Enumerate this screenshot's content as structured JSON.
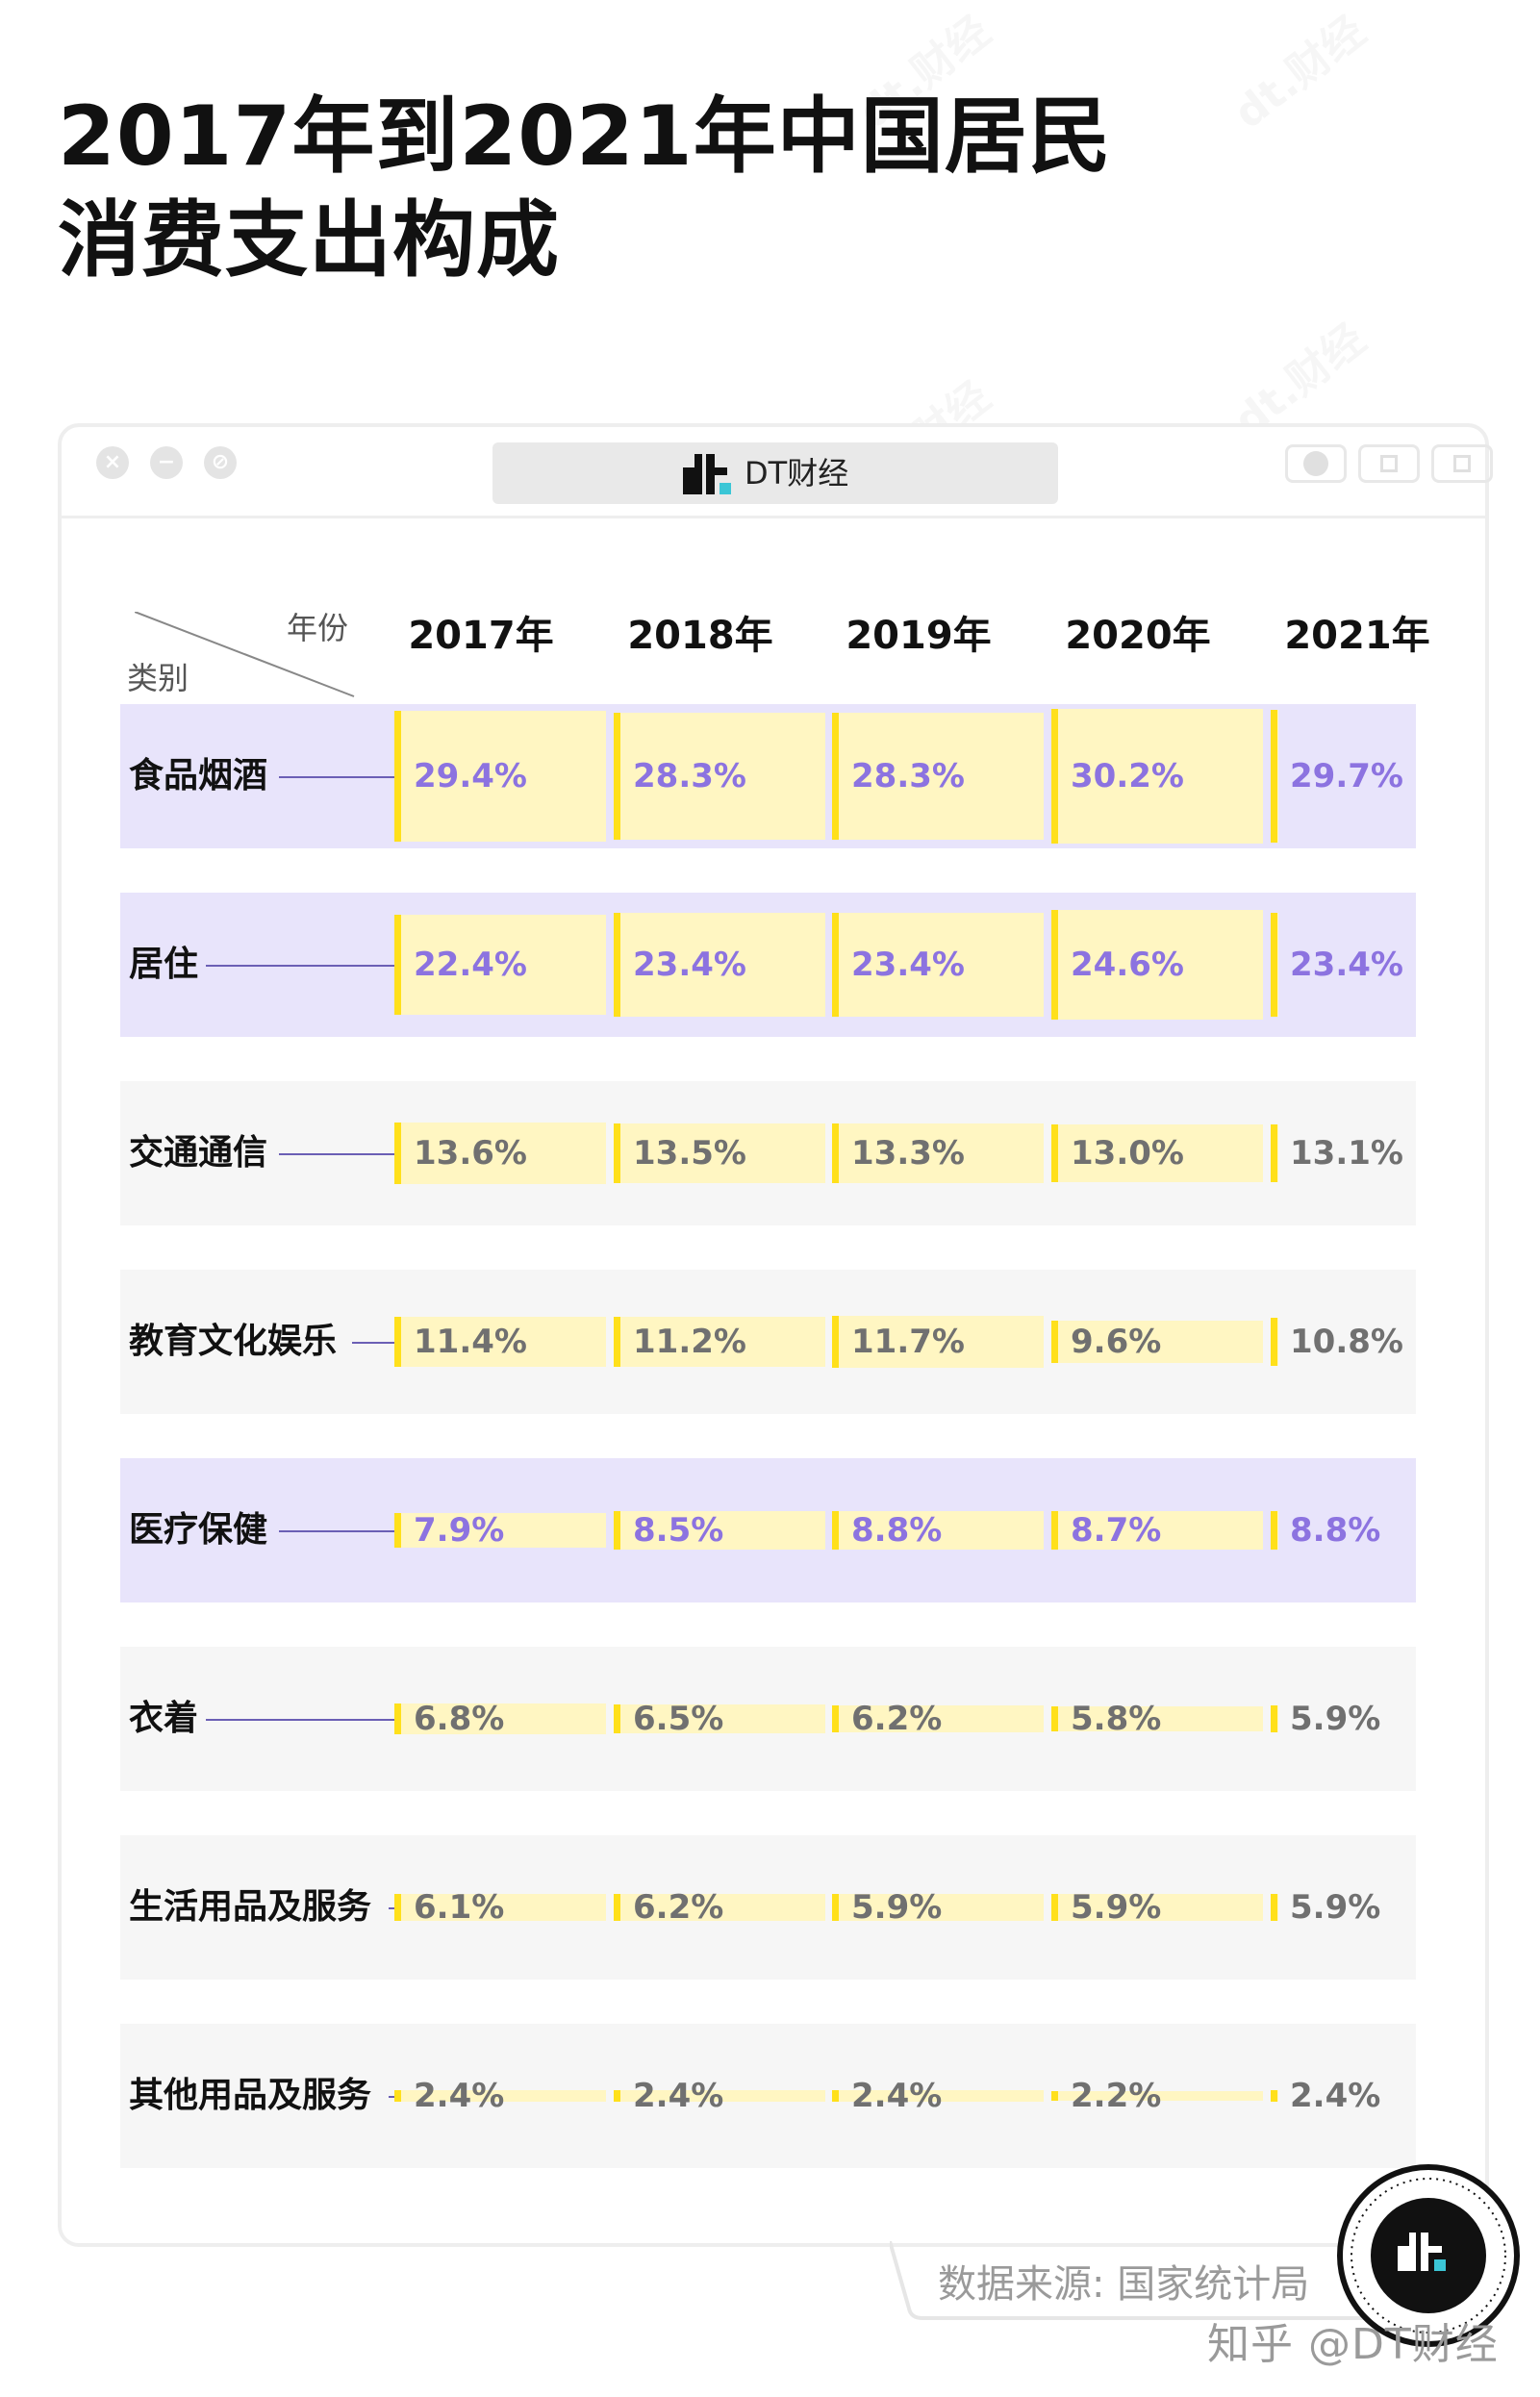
{
  "title_lines": [
    "2017年到2021年中国居民",
    "消费支出构成"
  ],
  "window": {
    "brand": "DT财经"
  },
  "corner": {
    "column_header": "年份",
    "row_header": "类别"
  },
  "colors": {
    "highlight_row": "#e8e4fb",
    "normal_row": "#f6f6f6",
    "bar_fill": "#fff6c2",
    "bar_tick": "#ffe01b",
    "highlight_value": "#8c73e0",
    "normal_value": "#707070",
    "connector": "#6b5fb5"
  },
  "chart_data": {
    "type": "table",
    "columns": [
      "2017年",
      "2018年",
      "2019年",
      "2020年",
      "2021年"
    ],
    "rows": [
      {
        "category": "食品烟酒",
        "values": [
          29.4,
          28.3,
          28.3,
          30.2,
          29.7
        ],
        "labels": [
          "29.4%",
          "28.3%",
          "28.3%",
          "30.2%",
          "29.7%"
        ],
        "highlight": true
      },
      {
        "category": "居住",
        "values": [
          22.4,
          23.4,
          23.4,
          24.6,
          23.4
        ],
        "labels": [
          "22.4%",
          "23.4%",
          "23.4%",
          "24.6%",
          "23.4%"
        ],
        "highlight": true
      },
      {
        "category": "交通通信",
        "values": [
          13.6,
          13.5,
          13.3,
          13.0,
          13.1
        ],
        "labels": [
          "13.6%",
          "13.5%",
          "13.3%",
          "13.0%",
          "13.1%"
        ],
        "highlight": false
      },
      {
        "category": "教育文化娱乐",
        "values": [
          11.4,
          11.2,
          11.7,
          9.6,
          10.8
        ],
        "labels": [
          "11.4%",
          "11.2%",
          "11.7%",
          "9.6%",
          "10.8%"
        ],
        "highlight": false
      },
      {
        "category": "医疗保健",
        "values": [
          7.9,
          8.5,
          8.8,
          8.7,
          8.8
        ],
        "labels": [
          "7.9%",
          "8.5%",
          "8.8%",
          "8.7%",
          "8.8%"
        ],
        "highlight": true
      },
      {
        "category": "衣着",
        "values": [
          6.8,
          6.5,
          6.2,
          5.8,
          5.9
        ],
        "labels": [
          "6.8%",
          "6.5%",
          "6.2%",
          "5.8%",
          "5.9%"
        ],
        "highlight": false
      },
      {
        "category": "生活用品及服务",
        "values": [
          6.1,
          6.2,
          5.9,
          5.9,
          5.9
        ],
        "labels": [
          "6.1%",
          "6.2%",
          "5.9%",
          "5.9%",
          "5.9%"
        ],
        "highlight": false
      },
      {
        "category": "其他用品及服务",
        "values": [
          2.4,
          2.4,
          2.4,
          2.2,
          2.4
        ],
        "labels": [
          "2.4%",
          "2.4%",
          "2.4%",
          "2.2%",
          "2.4%"
        ],
        "highlight": false
      }
    ],
    "unit": "%"
  },
  "source": "数据来源: 国家统计局",
  "credit": "知乎 @DT财经",
  "watermark": "dt.财经"
}
